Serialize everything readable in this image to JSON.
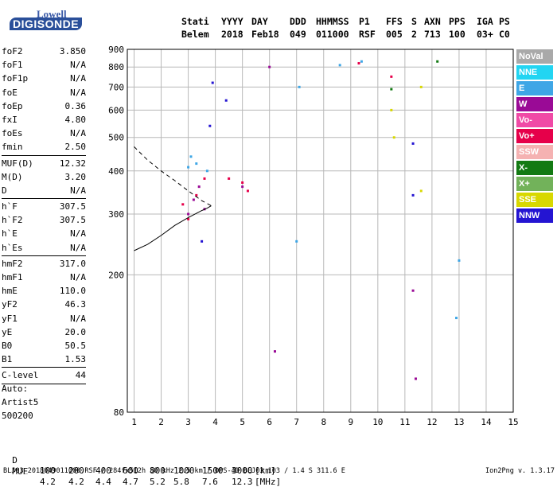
{
  "logo": {
    "line1": "Lowell",
    "line2": "DIGISONDE"
  },
  "header": {
    "labels": [
      "Stati",
      "YYYY",
      "DAY",
      "DDD",
      "HHMMSS",
      "P1",
      "FFS",
      "S",
      "AXN",
      "PPS",
      "IGA",
      "PS"
    ],
    "values": [
      "Belem",
      "2018",
      "Feb18",
      "049",
      "011000",
      "RSF",
      "005",
      "2",
      "713",
      "100",
      "03+",
      "C0"
    ]
  },
  "parameters": [
    {
      "name": "foF2",
      "value": "3.850"
    },
    {
      "name": "foF1",
      "value": "N/A"
    },
    {
      "name": "foF1p",
      "value": "N/A"
    },
    {
      "name": "foE",
      "value": "N/A"
    },
    {
      "name": "foEp",
      "value": "0.36"
    },
    {
      "name": "fxI",
      "value": "4.80"
    },
    {
      "name": "foEs",
      "value": "N/A"
    },
    {
      "name": "fmin",
      "value": "2.50"
    },
    {
      "name": "MUF(D)",
      "value": "12.32"
    },
    {
      "name": "M(D)",
      "value": "3.20"
    },
    {
      "name": "D",
      "value": "N/A"
    },
    {
      "name": "h`F",
      "value": "307.5"
    },
    {
      "name": "h`F2",
      "value": "307.5"
    },
    {
      "name": "h`E",
      "value": "N/A"
    },
    {
      "name": "h`Es",
      "value": "N/A"
    },
    {
      "name": "hmF2",
      "value": "317.0"
    },
    {
      "name": "hmF1",
      "value": "N/A"
    },
    {
      "name": "hmE",
      "value": "110.0"
    },
    {
      "name": "yF2",
      "value": "46.3"
    },
    {
      "name": "yF1",
      "value": "N/A"
    },
    {
      "name": "yE",
      "value": "20.0"
    },
    {
      "name": "B0",
      "value": "50.5"
    },
    {
      "name": "B1",
      "value": "1.53"
    },
    {
      "name": "C-level",
      "value": "44"
    }
  ],
  "auto": {
    "line1": "Auto:",
    "line2": "Artist5",
    "line3": "500200"
  },
  "d_row": {
    "label": "D",
    "values": [
      "100",
      "200",
      "400",
      "600",
      "800",
      "1000",
      "1500",
      "3000"
    ],
    "unit": "[km]"
  },
  "muf_row": {
    "label": "MUF",
    "values": [
      "4.2",
      "4.2",
      "4.4",
      "4.7",
      "5.2",
      "5.8",
      "7.6",
      "12.3"
    ],
    "unit": "[MHz]"
  },
  "footer": {
    "left": "BLJ03_2018049011000.RSF / 284fx512h 50 kHz 2.5 km / DPS-4D BLJ03 103 / 1.4 S 311.6 E",
    "right": "Ion2Png v. 1.3.17"
  },
  "legend": [
    {
      "label": "NoVal",
      "color": "#a9a9a9"
    },
    {
      "label": "NNE",
      "color": "#22d5f2"
    },
    {
      "label": "E",
      "color": "#3ea6e6"
    },
    {
      "label": "W",
      "color": "#9a0a96"
    },
    {
      "label": "Vo-",
      "color": "#f04aa6"
    },
    {
      "label": "Vo+",
      "color": "#e6004a"
    },
    {
      "label": "SSW",
      "color": "#f5b2b2"
    },
    {
      "label": "X-",
      "color": "#137a13"
    },
    {
      "label": "X+",
      "color": "#72b25a"
    },
    {
      "label": "SSE",
      "color": "#d8d800"
    },
    {
      "label": "NNW",
      "color": "#2414d2"
    }
  ],
  "chart_data": {
    "type": "scatter",
    "title": "",
    "xlabel": "",
    "ylabel": "",
    "xlim": [
      0.75,
      15
    ],
    "ylim": [
      80,
      900
    ],
    "xticks": [
      1,
      2,
      3,
      4,
      5,
      6,
      7,
      8,
      9,
      10,
      11,
      12,
      13,
      14,
      15
    ],
    "yticks": [
      80,
      200,
      300,
      400,
      500,
      600,
      700,
      800,
      900
    ],
    "y_scale": "log",
    "grid": true,
    "series": [
      {
        "name": "W",
        "color": "#9a0a96",
        "points": [
          [
            3.0,
            300
          ],
          [
            3.2,
            330
          ],
          [
            3.4,
            360
          ],
          [
            3.6,
            310
          ],
          [
            6.0,
            800
          ],
          [
            6.2,
            120
          ],
          [
            11.3,
            180
          ],
          [
            11.4,
            100
          ],
          [
            5.0,
            360
          ]
        ]
      },
      {
        "name": "Vo+",
        "color": "#e6004a",
        "points": [
          [
            2.8,
            320
          ],
          [
            3.0,
            290
          ],
          [
            3.3,
            340
          ],
          [
            3.6,
            380
          ],
          [
            4.5,
            380
          ],
          [
            5.0,
            370
          ],
          [
            5.2,
            350
          ],
          [
            10.5,
            750
          ],
          [
            9.3,
            820
          ]
        ]
      },
      {
        "name": "E",
        "color": "#3ea6e6",
        "points": [
          [
            3.0,
            410
          ],
          [
            3.1,
            440
          ],
          [
            3.3,
            420
          ],
          [
            3.7,
            400
          ],
          [
            7.0,
            250
          ],
          [
            7.1,
            700
          ],
          [
            8.6,
            810
          ],
          [
            9.4,
            830
          ],
          [
            12.9,
            150
          ],
          [
            13.0,
            220
          ]
        ]
      },
      {
        "name": "NNW",
        "color": "#2414d2",
        "points": [
          [
            3.5,
            250
          ],
          [
            3.8,
            540
          ],
          [
            3.9,
            720
          ],
          [
            11.3,
            340
          ],
          [
            11.3,
            480
          ],
          [
            4.4,
            640
          ]
        ]
      },
      {
        "name": "SSE",
        "color": "#d8d800",
        "points": [
          [
            10.5,
            600
          ],
          [
            10.6,
            500
          ],
          [
            11.6,
            350
          ],
          [
            11.6,
            700
          ]
        ]
      },
      {
        "name": "X-",
        "color": "#137a13",
        "points": [
          [
            10.5,
            690
          ],
          [
            12.2,
            830
          ]
        ]
      }
    ],
    "curves": [
      {
        "name": "profile",
        "style": "solid",
        "points": [
          [
            1.0,
            235
          ],
          [
            1.5,
            245
          ],
          [
            2.0,
            260
          ],
          [
            2.5,
            278
          ],
          [
            3.0,
            293
          ],
          [
            3.5,
            307
          ],
          [
            3.7,
            312
          ],
          [
            3.85,
            317
          ]
        ]
      },
      {
        "name": "trace",
        "style": "dashed",
        "points": [
          [
            1.0,
            470
          ],
          [
            1.5,
            430
          ],
          [
            2.0,
            400
          ],
          [
            2.5,
            375
          ],
          [
            3.0,
            350
          ],
          [
            3.5,
            328
          ],
          [
            3.85,
            317
          ]
        ]
      }
    ]
  }
}
